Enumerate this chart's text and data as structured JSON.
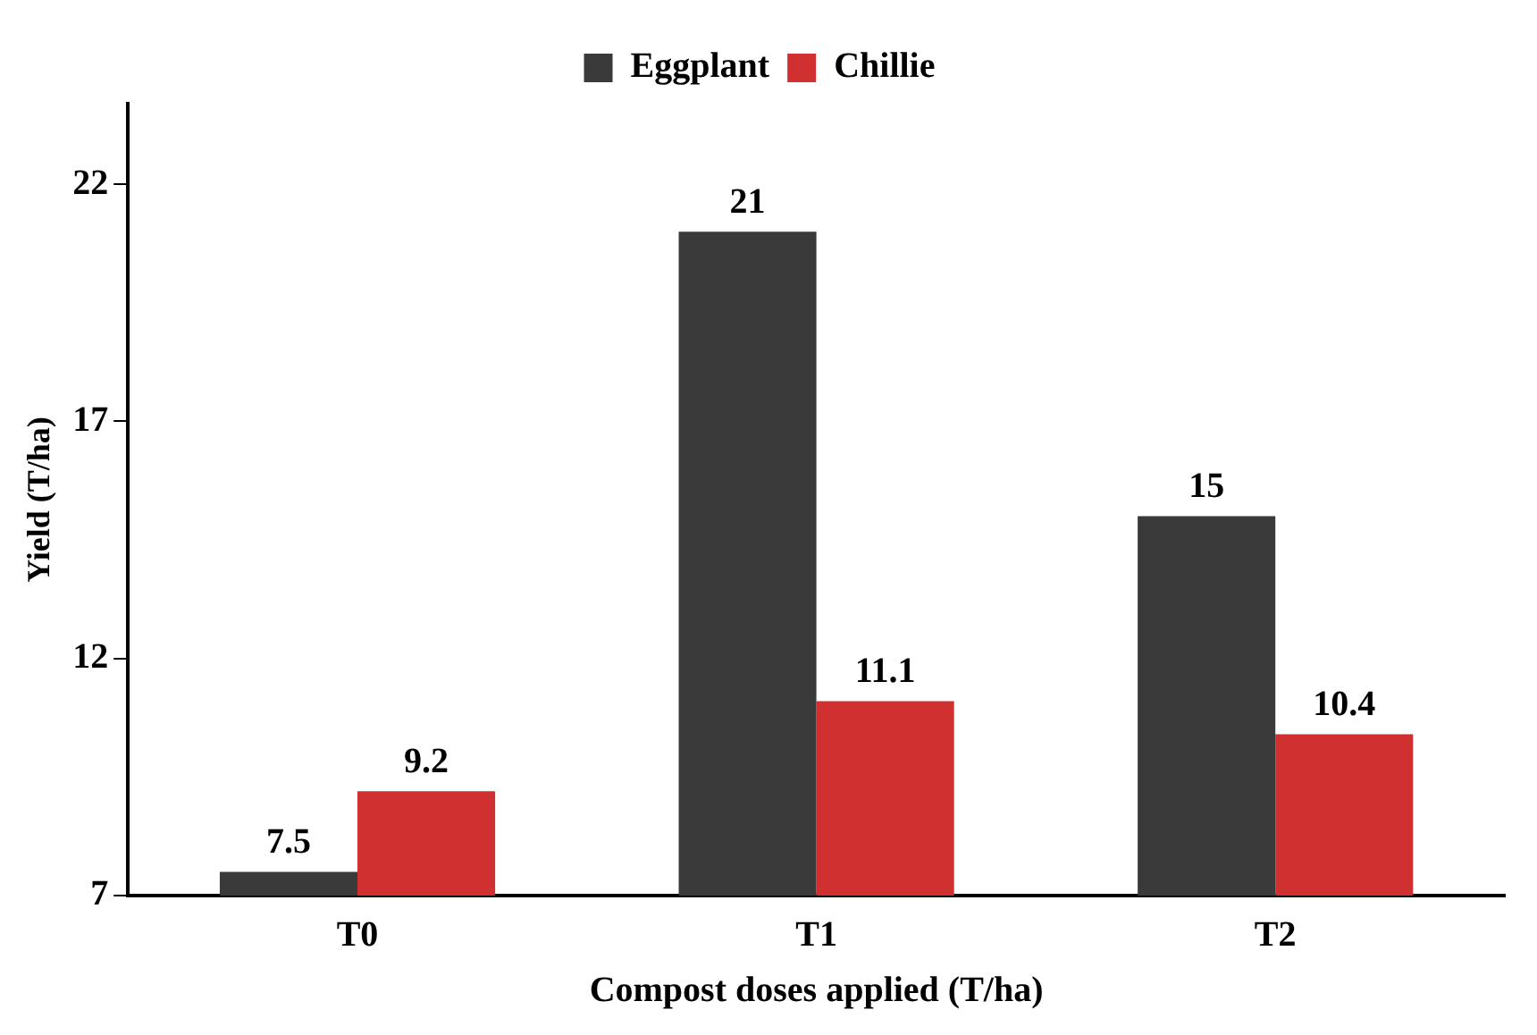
{
  "chart_data": {
    "type": "bar",
    "xlabel": "Compost doses applied (T/ha)",
    "ylabel": "Yield (T/ha)",
    "categories": [
      "T0",
      "T1",
      "T2"
    ],
    "series": [
      {
        "name": "Eggplant",
        "color": "#3a3a3a",
        "values": [
          7.5,
          21,
          15
        ]
      },
      {
        "name": "Chillie",
        "color": "#d03030",
        "values": [
          9.2,
          11.1,
          10.4
        ]
      }
    ],
    "ylim": [
      7,
      23.7
    ],
    "yticks": [
      7,
      12,
      17,
      22
    ],
    "grid": false,
    "legend": "top",
    "data_labels": true
  }
}
